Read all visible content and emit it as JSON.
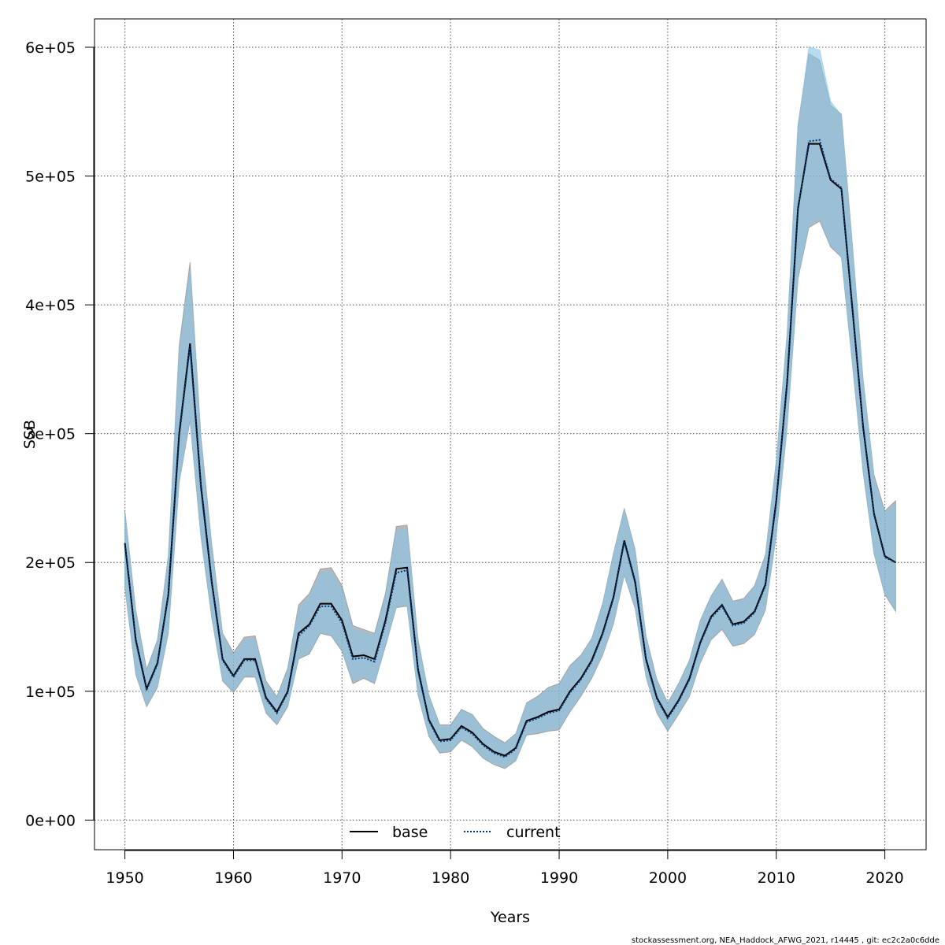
{
  "chart_data": {
    "type": "line",
    "title": "",
    "xlabel": "Years",
    "ylabel": "SSB",
    "xlim": [
      1947.2,
      2023.8
    ],
    "ylim": [
      -23000,
      622000
    ],
    "xticks": [
      1950,
      1960,
      1970,
      1980,
      1990,
      2000,
      2010,
      2020
    ],
    "xtick_labels": [
      "1950",
      "1960",
      "1970",
      "1980",
      "1990",
      "2000",
      "2010",
      "2020"
    ],
    "yticks": [
      0,
      100000,
      200000,
      300000,
      400000,
      500000,
      600000
    ],
    "ytick_labels": [
      "0e+00",
      "1e+05",
      "2e+05",
      "3e+05",
      "4e+05",
      "5e+05",
      "6e+05"
    ],
    "grid": true,
    "legend_position": "bottom-center",
    "x": [
      1950,
      1951,
      1952,
      1953,
      1954,
      1955,
      1956,
      1957,
      1958,
      1959,
      1960,
      1961,
      1962,
      1963,
      1964,
      1965,
      1966,
      1967,
      1968,
      1969,
      1970,
      1971,
      1972,
      1973,
      1974,
      1975,
      1976,
      1977,
      1978,
      1979,
      1980,
      1981,
      1982,
      1983,
      1984,
      1985,
      1986,
      1987,
      1988,
      1989,
      1990,
      1991,
      1992,
      1993,
      1994,
      1995,
      1996,
      1997,
      1998,
      1999,
      2000,
      2001,
      2002,
      2003,
      2004,
      2005,
      2006,
      2007,
      2008,
      2009,
      2010,
      2011,
      2012,
      2013,
      2014,
      2015,
      2016,
      2017,
      2018,
      2019,
      2020,
      2021
    ],
    "series": [
      {
        "name": "base",
        "color": "#000000",
        "dash": "solid",
        "band_color": "#808080",
        "values": [
          215000,
          140000,
          102000,
          122000,
          175000,
          300000,
          370000,
          260000,
          185000,
          125000,
          112000,
          125000,
          125000,
          95000,
          84000,
          100000,
          145000,
          152000,
          168000,
          168000,
          155000,
          127000,
          128000,
          125000,
          155000,
          195000,
          196000,
          117000,
          78000,
          62000,
          63000,
          73000,
          68000,
          59000,
          53000,
          50000,
          56000,
          77000,
          80000,
          84000,
          86000,
          100000,
          110000,
          124000,
          145000,
          173000,
          217000,
          185000,
          125000,
          95000,
          80000,
          93000,
          110000,
          138000,
          158000,
          167000,
          152000,
          154000,
          162000,
          183000,
          248000,
          340000,
          475000,
          525000,
          525000,
          497000,
          490000,
          398000,
          305000,
          238000,
          205000,
          200000
        ],
        "lower": [
          180000,
          113000,
          88000,
          103000,
          145000,
          262000,
          310000,
          220000,
          157000,
          108000,
          99000,
          111000,
          111000,
          83000,
          74000,
          88000,
          125000,
          129000,
          145000,
          143000,
          131000,
          106000,
          110000,
          106000,
          135000,
          165000,
          166000,
          97000,
          65000,
          52000,
          53000,
          62000,
          57000,
          48000,
          43000,
          40000,
          46000,
          66000,
          67000,
          69000,
          70000,
          84000,
          96000,
          110000,
          128000,
          152000,
          190000,
          164000,
          111000,
          83000,
          69000,
          82000,
          96000,
          122000,
          140000,
          148000,
          135000,
          137000,
          144000,
          163000,
          221000,
          305000,
          420000,
          460000,
          465000,
          445000,
          437000,
          355000,
          270000,
          207000,
          175000,
          162000
        ],
        "upper": [
          240000,
          163000,
          117000,
          140000,
          205000,
          368000,
          433000,
          298000,
          214000,
          145000,
          130000,
          142000,
          143000,
          108000,
          96000,
          118000,
          167000,
          176000,
          195000,
          196000,
          182000,
          151000,
          148000,
          145000,
          176000,
          228000,
          229000,
          140000,
          97000,
          74000,
          74000,
          86000,
          82000,
          71000,
          65000,
          60000,
          67000,
          91000,
          96000,
          103000,
          106000,
          120000,
          128000,
          141000,
          168000,
          207000,
          242000,
          210000,
          143000,
          109000,
          91000,
          106000,
          124000,
          155000,
          174000,
          187000,
          170000,
          172000,
          182000,
          206000,
          279000,
          378000,
          540000,
          595000,
          590000,
          555000,
          548000,
          448000,
          342000,
          268000,
          240000,
          248000
        ]
      },
      {
        "name": "current",
        "color": "#003a7a",
        "dash": "dotted",
        "band_color": "#87c4e8",
        "values": [
          214000,
          139000,
          101000,
          121000,
          174000,
          298000,
          368000,
          258000,
          184000,
          124000,
          111000,
          124000,
          124000,
          94000,
          83000,
          99000,
          143000,
          151000,
          166000,
          166000,
          153000,
          125000,
          126000,
          123000,
          153000,
          192000,
          194000,
          116000,
          77000,
          61000,
          62000,
          72000,
          67000,
          58000,
          52000,
          49000,
          55000,
          76000,
          79000,
          83000,
          85000,
          99000,
          109000,
          123000,
          144000,
          172000,
          216000,
          184000,
          124000,
          94000,
          79000,
          92000,
          109000,
          137000,
          157000,
          166000,
          151000,
          153000,
          161000,
          182000,
          247000,
          339000,
          474000,
          527000,
          528000,
          498000,
          491000,
          399000,
          306000,
          237000,
          204000,
          200000
        ],
        "lower": [
          181000,
          114000,
          89000,
          104000,
          146000,
          263000,
          312000,
          221000,
          158000,
          109000,
          100000,
          112000,
          112000,
          84000,
          75000,
          89000,
          126000,
          130000,
          146000,
          144000,
          132000,
          108000,
          111000,
          107000,
          136000,
          166000,
          167000,
          98000,
          66000,
          53000,
          54000,
          63000,
          58000,
          49000,
          44000,
          41000,
          47000,
          67000,
          68000,
          70000,
          71000,
          85000,
          97000,
          111000,
          129000,
          153000,
          191000,
          165000,
          112000,
          84000,
          70000,
          83000,
          97000,
          123000,
          141000,
          149000,
          136000,
          138000,
          145000,
          164000,
          222000,
          306000,
          421000,
          462000,
          467000,
          446000,
          438000,
          356000,
          271000,
          208000,
          176000,
          163000
        ],
        "upper": [
          238000,
          161000,
          115000,
          138000,
          203000,
          363000,
          428000,
          294000,
          211000,
          143000,
          128000,
          140000,
          141000,
          106000,
          95000,
          116000,
          164000,
          174000,
          192000,
          193000,
          179000,
          148000,
          146000,
          143000,
          173000,
          225000,
          226000,
          138000,
          96000,
          73000,
          73000,
          85000,
          81000,
          70000,
          64000,
          59000,
          66000,
          90000,
          95000,
          102000,
          105000,
          119000,
          127000,
          140000,
          167000,
          206000,
          241000,
          209000,
          142000,
          108000,
          90000,
          105000,
          123000,
          154000,
          173000,
          186000,
          169000,
          171000,
          181000,
          205000,
          278000,
          377000,
          538000,
          600000,
          598000,
          558000,
          547000,
          447000,
          341000,
          266000,
          238000,
          246000
        ]
      }
    ]
  },
  "footer": "stockassessment.org, NEA_Haddock_AFWG_2021, r14445 , git: ec2c2a0c6dde"
}
